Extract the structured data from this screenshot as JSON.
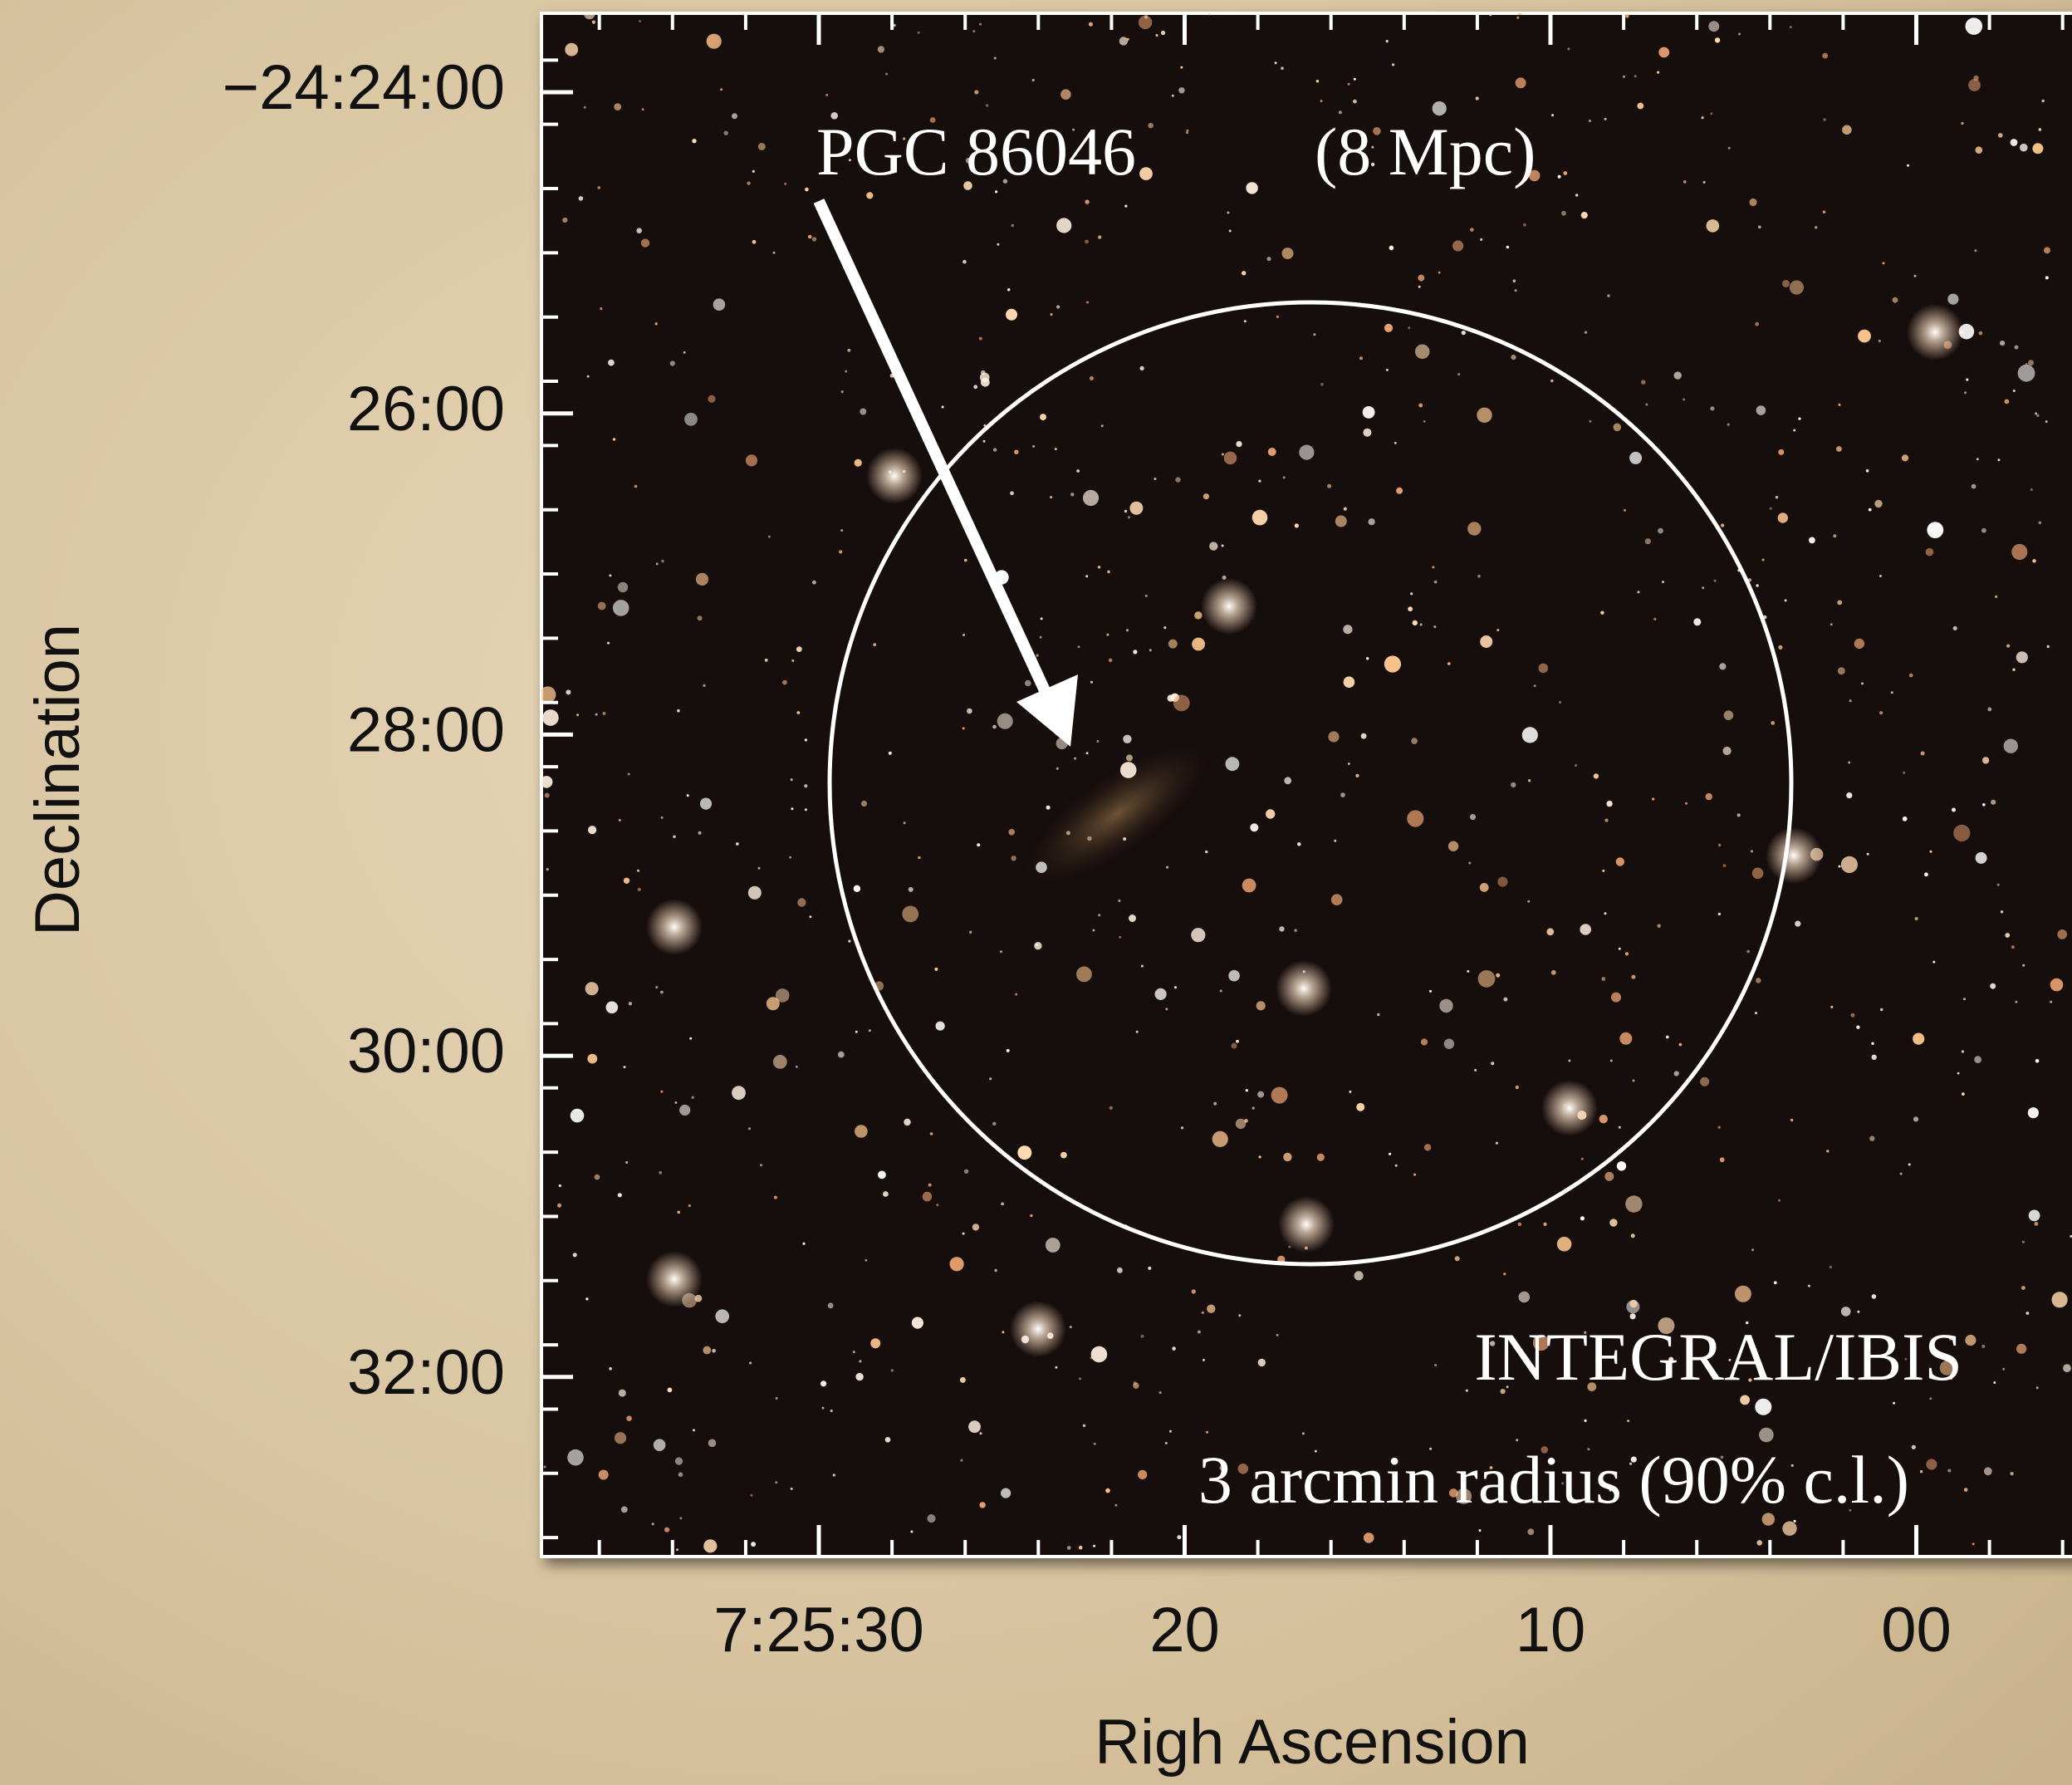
{
  "axes": {
    "y_label": "Declination",
    "x_label": "Righ Ascension",
    "y_ticks": [
      "−24:24:00",
      "26:00",
      "28:00",
      "30:00",
      "32:00"
    ],
    "x_ticks": [
      "7:25:30",
      "20",
      "10",
      "00"
    ]
  },
  "annotations": {
    "source_name": "PGC 86046",
    "distance": "(8 Mpc)",
    "instrument": "INTEGRAL/IBIS",
    "error_circle": "3 arcmin radius  (90% c.l.)"
  }
}
